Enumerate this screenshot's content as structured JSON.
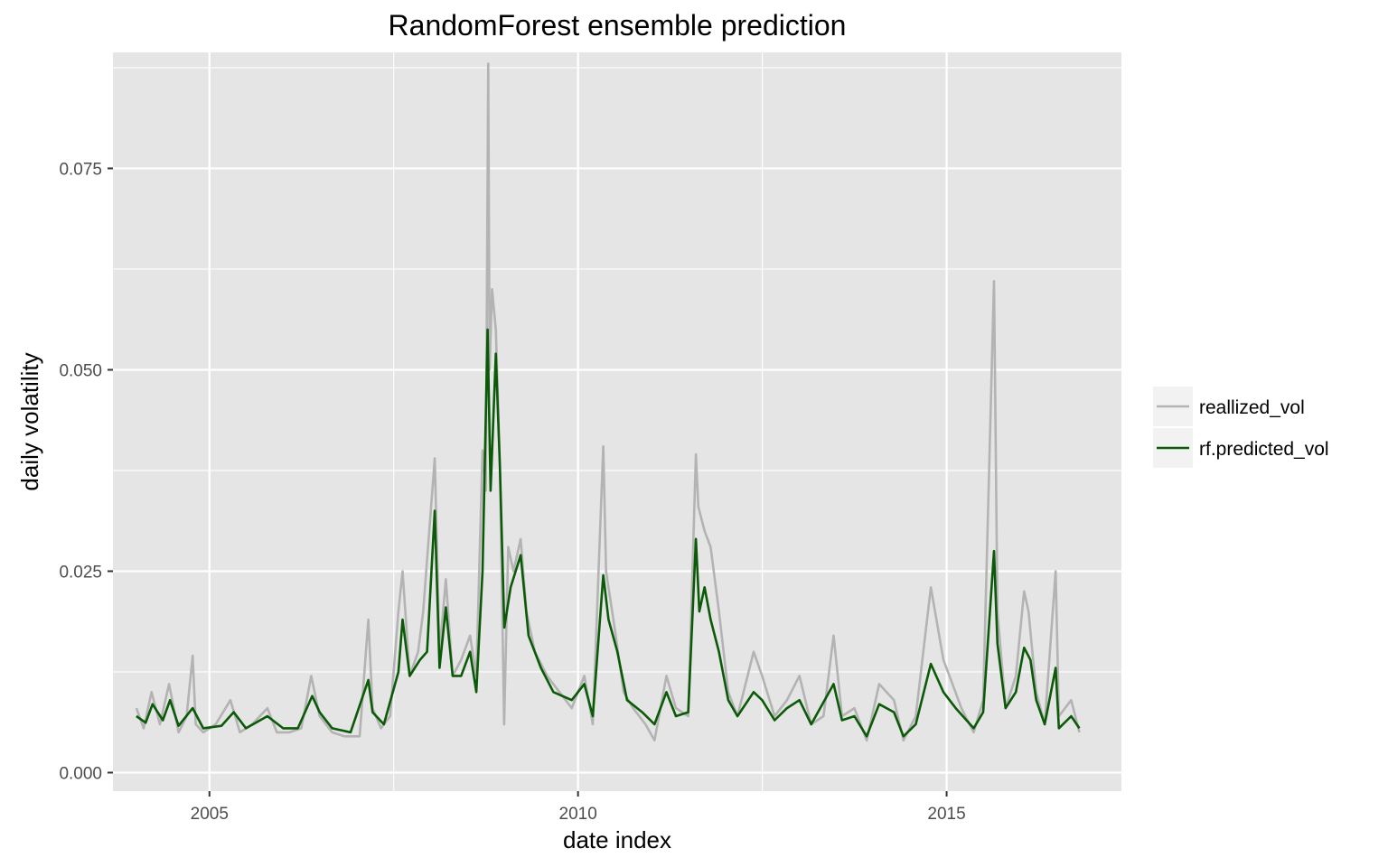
{
  "chart_data": {
    "type": "line",
    "title": "RandomForest ensemble prediction",
    "xlabel": "date index",
    "ylabel": "daily volatility",
    "xlim": [
      "2003-09-11",
      "2017-05-16"
    ],
    "ylim": [
      -0.0023,
      0.0894
    ],
    "x_ticks": [
      {
        "date": "2005-01-01",
        "label": "2005"
      },
      {
        "date": "2010-01-01",
        "label": "2010"
      },
      {
        "date": "2015-01-01",
        "label": "2015"
      }
    ],
    "y_ticks": [
      {
        "value": 0.0,
        "label": "0.000"
      },
      {
        "value": 0.025,
        "label": "0.025"
      },
      {
        "value": 0.05,
        "label": "0.050"
      },
      {
        "value": 0.075,
        "label": "0.075"
      }
    ],
    "grid": true,
    "legend_position": "right",
    "series": [
      {
        "name": "reallized_vol",
        "color": "#b3b3b3",
        "points": [
          [
            "2004-01-05",
            0.008
          ],
          [
            "2004-02-10",
            0.0055
          ],
          [
            "2004-03-20",
            0.01
          ],
          [
            "2004-05-01",
            0.006
          ],
          [
            "2004-06-15",
            0.011
          ],
          [
            "2004-08-01",
            0.005
          ],
          [
            "2004-09-10",
            0.007
          ],
          [
            "2004-10-10",
            0.0145
          ],
          [
            "2004-10-25",
            0.006
          ],
          [
            "2004-12-01",
            0.005
          ],
          [
            "2005-02-01",
            0.006
          ],
          [
            "2005-04-15",
            0.009
          ],
          [
            "2005-06-01",
            0.005
          ],
          [
            "2005-08-01",
            0.006
          ],
          [
            "2005-10-15",
            0.008
          ],
          [
            "2005-12-01",
            0.005
          ],
          [
            "2006-02-01",
            0.005
          ],
          [
            "2006-04-01",
            0.0055
          ],
          [
            "2006-05-20",
            0.012
          ],
          [
            "2006-07-01",
            0.007
          ],
          [
            "2006-09-01",
            0.005
          ],
          [
            "2006-11-01",
            0.0045
          ],
          [
            "2007-01-15",
            0.0045
          ],
          [
            "2007-02-27",
            0.019
          ],
          [
            "2007-03-20",
            0.008
          ],
          [
            "2007-05-01",
            0.0055
          ],
          [
            "2007-06-15",
            0.007
          ],
          [
            "2007-07-26",
            0.02
          ],
          [
            "2007-08-16",
            0.025
          ],
          [
            "2007-09-20",
            0.012
          ],
          [
            "2007-11-01",
            0.015
          ],
          [
            "2007-11-26",
            0.02
          ],
          [
            "2008-01-22",
            0.039
          ],
          [
            "2008-02-15",
            0.015
          ],
          [
            "2008-03-17",
            0.024
          ],
          [
            "2008-04-20",
            0.012
          ],
          [
            "2008-06-01",
            0.014
          ],
          [
            "2008-07-15",
            0.017
          ],
          [
            "2008-08-15",
            0.012
          ],
          [
            "2008-09-15",
            0.04
          ],
          [
            "2008-10-01",
            0.035
          ],
          [
            "2008-10-13",
            0.088
          ],
          [
            "2008-10-20",
            0.05
          ],
          [
            "2008-11-01",
            0.06
          ],
          [
            "2008-11-20",
            0.055
          ],
          [
            "2008-12-10",
            0.038
          ],
          [
            "2008-12-31",
            0.006
          ],
          [
            "2009-01-20",
            0.028
          ],
          [
            "2009-02-15",
            0.025
          ],
          [
            "2009-03-23",
            0.029
          ],
          [
            "2009-04-20",
            0.02
          ],
          [
            "2009-06-01",
            0.015
          ],
          [
            "2009-08-01",
            0.012
          ],
          [
            "2009-10-01",
            0.01
          ],
          [
            "2009-12-01",
            0.008
          ],
          [
            "2010-02-01",
            0.012
          ],
          [
            "2010-03-15",
            0.006
          ],
          [
            "2010-05-06",
            0.0405
          ],
          [
            "2010-05-20",
            0.025
          ],
          [
            "2010-07-01",
            0.018
          ],
          [
            "2010-08-15",
            0.01
          ],
          [
            "2010-10-01",
            0.008
          ],
          [
            "2010-12-01",
            0.006
          ],
          [
            "2011-01-15",
            0.004
          ],
          [
            "2011-03-15",
            0.012
          ],
          [
            "2011-05-01",
            0.008
          ],
          [
            "2011-07-01",
            0.007
          ],
          [
            "2011-08-08",
            0.0395
          ],
          [
            "2011-08-20",
            0.033
          ],
          [
            "2011-09-20",
            0.03
          ],
          [
            "2011-10-20",
            0.028
          ],
          [
            "2011-11-30",
            0.02
          ],
          [
            "2012-01-15",
            0.01
          ],
          [
            "2012-03-01",
            0.007
          ],
          [
            "2012-05-20",
            0.015
          ],
          [
            "2012-07-01",
            0.012
          ],
          [
            "2012-09-01",
            0.007
          ],
          [
            "2012-11-01",
            0.009
          ],
          [
            "2013-01-02",
            0.012
          ],
          [
            "2013-03-01",
            0.006
          ],
          [
            "2013-05-01",
            0.007
          ],
          [
            "2013-06-20",
            0.017
          ],
          [
            "2013-08-01",
            0.007
          ],
          [
            "2013-10-01",
            0.008
          ],
          [
            "2013-12-01",
            0.004
          ],
          [
            "2014-02-01",
            0.011
          ],
          [
            "2014-04-15",
            0.009
          ],
          [
            "2014-06-01",
            0.004
          ],
          [
            "2014-08-01",
            0.007
          ],
          [
            "2014-10-15",
            0.023
          ],
          [
            "2014-12-16",
            0.014
          ],
          [
            "2015-01-15",
            0.012
          ],
          [
            "2015-03-15",
            0.008
          ],
          [
            "2015-05-15",
            0.005
          ],
          [
            "2015-07-01",
            0.009
          ],
          [
            "2015-08-24",
            0.061
          ],
          [
            "2015-09-10",
            0.02
          ],
          [
            "2015-10-20",
            0.008
          ],
          [
            "2015-12-10",
            0.012
          ],
          [
            "2016-01-20",
            0.0225
          ],
          [
            "2016-02-11",
            0.02
          ],
          [
            "2016-03-20",
            0.01
          ],
          [
            "2016-05-01",
            0.006
          ],
          [
            "2016-06-24",
            0.025
          ],
          [
            "2016-07-10",
            0.007
          ],
          [
            "2016-09-09",
            0.009
          ],
          [
            "2016-10-20",
            0.005
          ]
        ]
      },
      {
        "name": "rf.predicted_vol",
        "color": "#0b5a07",
        "points": [
          [
            "2004-01-05",
            0.007
          ],
          [
            "2004-02-20",
            0.0062
          ],
          [
            "2004-03-25",
            0.0085
          ],
          [
            "2004-05-15",
            0.0065
          ],
          [
            "2004-06-20",
            0.009
          ],
          [
            "2004-08-01",
            0.0058
          ],
          [
            "2004-10-10",
            0.008
          ],
          [
            "2004-12-01",
            0.0055
          ],
          [
            "2005-03-01",
            0.0058
          ],
          [
            "2005-05-01",
            0.0075
          ],
          [
            "2005-07-01",
            0.0055
          ],
          [
            "2005-10-15",
            0.007
          ],
          [
            "2006-01-01",
            0.0055
          ],
          [
            "2006-03-15",
            0.0055
          ],
          [
            "2006-05-25",
            0.0095
          ],
          [
            "2006-07-01",
            0.0075
          ],
          [
            "2006-09-01",
            0.0055
          ],
          [
            "2006-12-01",
            0.005
          ],
          [
            "2007-02-27",
            0.0115
          ],
          [
            "2007-03-20",
            0.0075
          ],
          [
            "2007-05-15",
            0.006
          ],
          [
            "2007-07-26",
            0.0125
          ],
          [
            "2007-08-16",
            0.019
          ],
          [
            "2007-09-20",
            0.012
          ],
          [
            "2007-11-10",
            0.014
          ],
          [
            "2007-12-15",
            0.015
          ],
          [
            "2008-01-22",
            0.0325
          ],
          [
            "2008-02-15",
            0.013
          ],
          [
            "2008-03-17",
            0.0205
          ],
          [
            "2008-04-20",
            0.012
          ],
          [
            "2008-06-01",
            0.012
          ],
          [
            "2008-07-15",
            0.015
          ],
          [
            "2008-08-15",
            0.01
          ],
          [
            "2008-09-15",
            0.025
          ],
          [
            "2008-10-10",
            0.055
          ],
          [
            "2008-10-25",
            0.035
          ],
          [
            "2008-11-20",
            0.052
          ],
          [
            "2008-12-10",
            0.038
          ],
          [
            "2009-01-01",
            0.018
          ],
          [
            "2009-02-01",
            0.023
          ],
          [
            "2009-03-23",
            0.027
          ],
          [
            "2009-05-01",
            0.017
          ],
          [
            "2009-07-01",
            0.013
          ],
          [
            "2009-09-01",
            0.01
          ],
          [
            "2009-12-01",
            0.009
          ],
          [
            "2010-02-01",
            0.011
          ],
          [
            "2010-03-15",
            0.007
          ],
          [
            "2010-05-06",
            0.0245
          ],
          [
            "2010-06-01",
            0.019
          ],
          [
            "2010-07-15",
            0.015
          ],
          [
            "2010-09-01",
            0.009
          ],
          [
            "2010-11-15",
            0.0075
          ],
          [
            "2011-01-15",
            0.006
          ],
          [
            "2011-03-15",
            0.01
          ],
          [
            "2011-05-01",
            0.007
          ],
          [
            "2011-07-01",
            0.0075
          ],
          [
            "2011-08-08",
            0.029
          ],
          [
            "2011-08-25",
            0.02
          ],
          [
            "2011-09-20",
            0.023
          ],
          [
            "2011-10-20",
            0.019
          ],
          [
            "2011-11-30",
            0.015
          ],
          [
            "2012-01-15",
            0.009
          ],
          [
            "2012-03-01",
            0.007
          ],
          [
            "2012-05-20",
            0.01
          ],
          [
            "2012-07-01",
            0.009
          ],
          [
            "2012-09-01",
            0.0065
          ],
          [
            "2012-11-01",
            0.008
          ],
          [
            "2013-01-02",
            0.009
          ],
          [
            "2013-03-01",
            0.006
          ],
          [
            "2013-06-20",
            0.011
          ],
          [
            "2013-08-01",
            0.0065
          ],
          [
            "2013-10-01",
            0.007
          ],
          [
            "2013-12-01",
            0.0045
          ],
          [
            "2014-02-01",
            0.0085
          ],
          [
            "2014-04-15",
            0.0075
          ],
          [
            "2014-06-01",
            0.0045
          ],
          [
            "2014-08-01",
            0.006
          ],
          [
            "2014-10-15",
            0.0135
          ],
          [
            "2014-12-16",
            0.01
          ],
          [
            "2015-02-15",
            0.008
          ],
          [
            "2015-05-15",
            0.0055
          ],
          [
            "2015-07-01",
            0.0075
          ],
          [
            "2015-08-24",
            0.0275
          ],
          [
            "2015-09-10",
            0.016
          ],
          [
            "2015-10-20",
            0.008
          ],
          [
            "2015-12-10",
            0.01
          ],
          [
            "2016-01-20",
            0.0155
          ],
          [
            "2016-02-20",
            0.014
          ],
          [
            "2016-03-20",
            0.009
          ],
          [
            "2016-05-01",
            0.006
          ],
          [
            "2016-06-24",
            0.013
          ],
          [
            "2016-07-10",
            0.0055
          ],
          [
            "2016-09-09",
            0.007
          ],
          [
            "2016-10-20",
            0.0055
          ]
        ]
      }
    ]
  }
}
